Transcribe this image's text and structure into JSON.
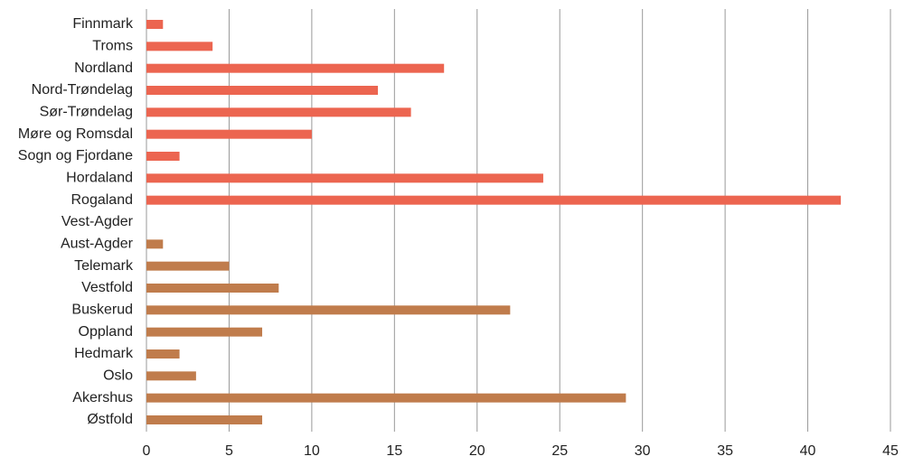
{
  "chart_data": {
    "type": "bar",
    "orientation": "horizontal",
    "categories": [
      "Finnmark",
      "Troms",
      "Nordland",
      "Nord-Trøndelag",
      "Sør-Trøndelag",
      "Møre og Romsdal",
      "Sogn og Fjordane",
      "Hordaland",
      "Rogaland",
      "Vest-Agder",
      "Aust-Agder",
      "Telemark",
      "Vestfold",
      "Buskerud",
      "Oppland",
      "Hedmark",
      "Oslo",
      "Akershus",
      "Østfold"
    ],
    "values": [
      1,
      4,
      18,
      14,
      16,
      10,
      2,
      24,
      42,
      0,
      1,
      5,
      8,
      22,
      7,
      2,
      3,
      29,
      7
    ],
    "colors": [
      "#ec6550",
      "#ec6550",
      "#ec6550",
      "#ec6550",
      "#ec6550",
      "#ec6550",
      "#ec6550",
      "#ec6550",
      "#ec6550",
      "#ec6550",
      "#c07c4c",
      "#c07c4c",
      "#c07c4c",
      "#c07c4c",
      "#c07c4c",
      "#c07c4c",
      "#c07c4c",
      "#c07c4c",
      "#c07c4c"
    ],
    "xlim": [
      0,
      45
    ],
    "xticks": [
      0,
      5,
      10,
      15,
      20,
      25,
      30,
      35,
      40,
      45
    ],
    "grid": true
  }
}
